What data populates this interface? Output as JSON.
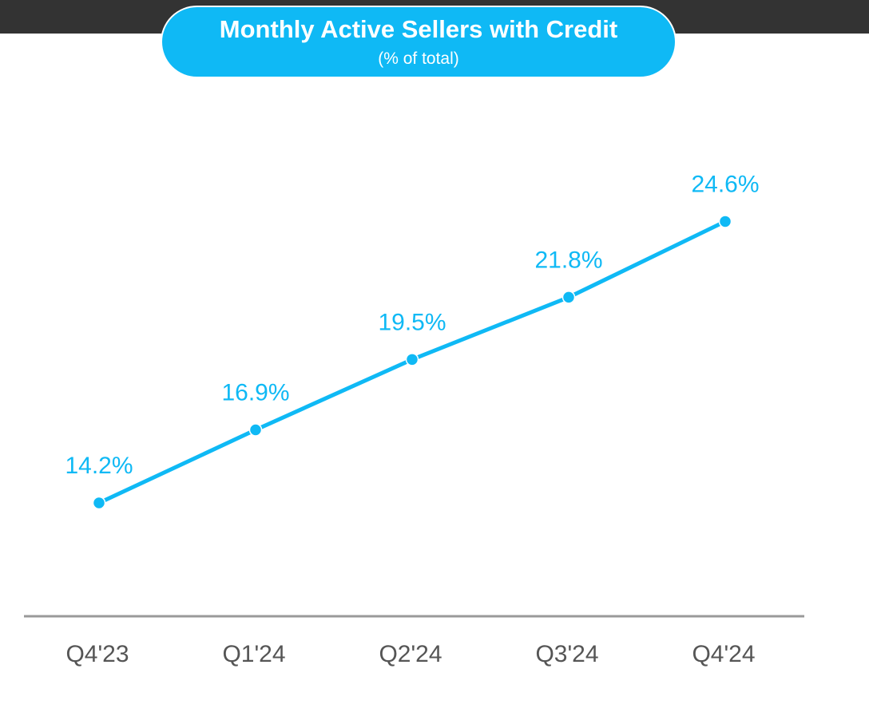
{
  "header": {
    "title": "Monthly Active Sellers with Credit",
    "subtitle": "(% of total)"
  },
  "chart_data": {
    "type": "line",
    "title": "Monthly Active Sellers with Credit",
    "subtitle": "(% of total)",
    "xlabel": "",
    "ylabel": "",
    "categories": [
      "Q4'23",
      "Q1'24",
      "Q2'24",
      "Q3'24",
      "Q4'24"
    ],
    "series": [
      {
        "name": "Monthly Active Sellers with Credit (% of total)",
        "values": [
          14.2,
          16.9,
          19.5,
          21.8,
          24.6
        ],
        "labels": [
          "14.2%",
          "16.9%",
          "19.5%",
          "21.8%",
          "24.6%"
        ]
      }
    ],
    "grid": false,
    "legend": "none",
    "colors": {
      "line": "#0FB9F5",
      "label": "#0FB9F5",
      "axis": "#999999",
      "tick_text": "#555555",
      "header_bg": "#0FB9F5",
      "top_bar": "#333333"
    }
  }
}
